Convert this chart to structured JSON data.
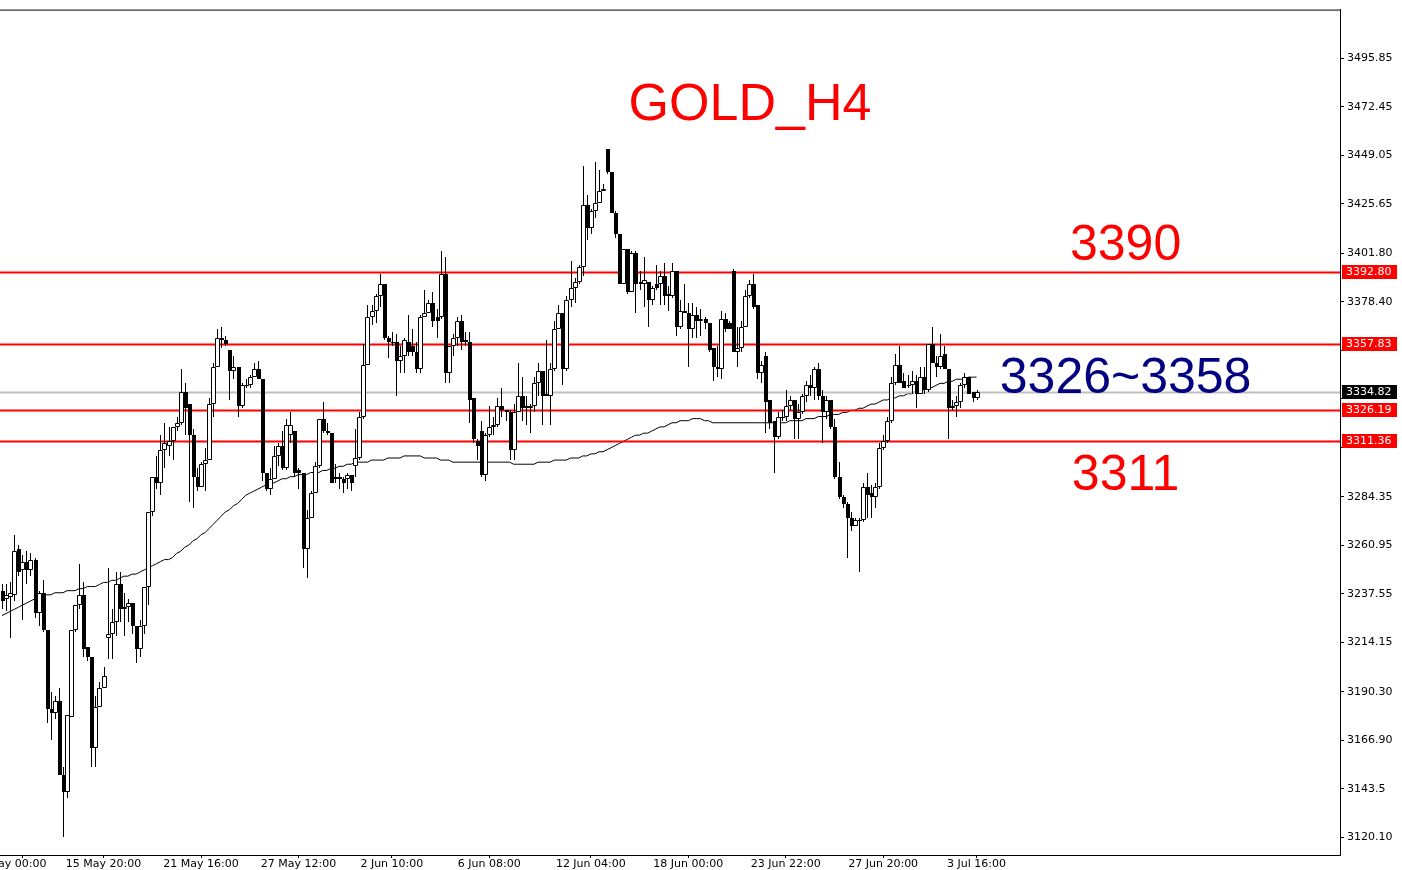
{
  "chart_data": {
    "type": "candlestick",
    "title": "GOLD_H4",
    "categories": [
      null,
      null,
      null,
      null,
      null,
      "ay 00:00",
      null,
      null,
      null,
      null,
      null,
      null,
      null,
      null,
      null,
      null,
      null,
      null,
      null,
      null,
      null,
      null,
      null,
      null,
      null,
      "15 May 20:00",
      null,
      null,
      null,
      null,
      null,
      null,
      null,
      null,
      null,
      null,
      null,
      null,
      null,
      null,
      null,
      null,
      null,
      null,
      null,
      null,
      null,
      null,
      null,
      "21 May 16:00",
      null,
      null,
      null,
      null,
      null,
      null,
      null,
      null,
      null,
      null,
      null,
      null,
      null,
      null,
      null,
      null,
      null,
      null,
      null,
      null,
      null,
      null,
      null,
      "27 May 12:00",
      null,
      null,
      null,
      null,
      null,
      null,
      null,
      null,
      null,
      null,
      null,
      null,
      null,
      null,
      null,
      null,
      null,
      null,
      null,
      null,
      null,
      null,
      "2 Jun 10:00",
      null,
      null,
      null,
      null,
      null,
      null,
      null,
      null,
      null,
      null,
      null,
      null,
      null,
      null,
      null,
      null,
      null,
      null,
      null,
      null,
      null,
      null,
      null,
      "6 Jun 08:00",
      null,
      null,
      null,
      null,
      null,
      null,
      null,
      null,
      null,
      null,
      null,
      null,
      null,
      null,
      null,
      null,
      null,
      null,
      null,
      null,
      null,
      null,
      null,
      null,
      "12 Jun 04:00",
      null,
      null,
      null,
      null,
      null,
      null,
      null,
      null,
      null,
      null,
      null,
      null,
      null,
      null,
      null,
      null,
      null,
      null,
      null,
      null,
      null,
      null,
      null,
      "18 Jun 00:00",
      null,
      null,
      null,
      null,
      null,
      null,
      null,
      null,
      null,
      null,
      null,
      null,
      null,
      null,
      null,
      null,
      null,
      null,
      null,
      null,
      null,
      null,
      null,
      "23 Jun 22:00",
      null,
      null,
      null,
      null,
      null,
      null,
      null,
      null,
      null,
      null,
      null,
      null,
      null,
      null,
      null,
      null,
      null,
      null,
      null,
      null,
      null,
      null,
      null,
      "27 Jun 20:00",
      null,
      null,
      null,
      null,
      null,
      null,
      null,
      null,
      null,
      null,
      null,
      null,
      null,
      null,
      null,
      null,
      null,
      null,
      null,
      null,
      null,
      null,
      "3 Jul 16:00",
      null,
      null,
      null,
      null,
      null,
      null,
      null,
      null,
      null,
      null,
      null,
      null,
      null,
      null,
      null,
      null,
      null,
      null,
      null,
      null,
      null,
      null,
      null,
      null,
      null,
      null,
      null,
      null,
      null,
      null,
      null,
      null,
      null,
      null,
      null,
      null,
      null,
      null,
      null,
      null,
      null,
      null,
      null,
      null,
      null,
      null,
      null,
      null,
      null,
      null,
      null,
      null,
      null,
      null,
      null,
      null,
      null,
      null,
      null,
      null,
      null,
      null,
      null,
      null,
      null,
      null,
      null,
      null,
      null,
      null,
      null,
      null,
      null,
      null,
      null,
      null,
      null,
      null,
      null,
      null,
      null,
      null,
      null,
      null,
      null,
      null,
      null,
      null,
      null
    ],
    "ohlc": [
      [
        3239,
        3242,
        3230,
        3234
      ],
      [
        3235,
        3242,
        3229,
        3237
      ],
      [
        3236,
        3243,
        3216,
        3238
      ],
      [
        3237,
        3266,
        3234,
        3258
      ],
      [
        3259,
        3261,
        3246,
        3248
      ],
      [
        3249,
        3256,
        3225,
        3253
      ],
      [
        3253,
        3258,
        3242,
        3249
      ],
      [
        3249,
        3257,
        3246,
        3254
      ],
      [
        3254,
        3255,
        3226,
        3228
      ],
      [
        3228,
        3239,
        3222,
        3238
      ],
      [
        3238,
        3244,
        3219,
        3220
      ],
      [
        3220,
        3220,
        3175,
        3182
      ],
      [
        3182,
        3190,
        3167,
        3180
      ],
      [
        3180,
        3188,
        3177,
        3186
      ],
      [
        3186,
        3192,
        3150,
        3150
      ],
      [
        3150,
        3154,
        3120,
        3142
      ],
      [
        3142,
        3179,
        3139,
        3179
      ],
      [
        3178,
        3220,
        3178,
        3220
      ],
      [
        3220,
        3232,
        3219,
        3232
      ],
      [
        3232,
        3252,
        3230,
        3237
      ],
      [
        3237,
        3243,
        3207,
        3211
      ],
      [
        3212,
        3212,
        3205,
        3207
      ],
      [
        3207,
        3207,
        3154,
        3163
      ],
      [
        3163,
        3188,
        3154,
        3183
      ],
      [
        3183,
        3195,
        3183,
        3192
      ],
      [
        3192,
        3202,
        3192,
        3198
      ],
      [
        3216,
        3250,
        3206,
        3218
      ],
      [
        3218,
        3230,
        3206,
        3224
      ],
      [
        3224,
        3248,
        3217,
        3242
      ],
      [
        3242,
        3248,
        3224,
        3230
      ],
      [
        3230,
        3238,
        3217,
        3231
      ],
      [
        3231,
        3235,
        3224,
        3233
      ],
      [
        3233,
        3233,
        3218,
        3222
      ],
      [
        3222,
        3222,
        3204,
        3211
      ],
      [
        3211,
        3225,
        3207,
        3222
      ],
      [
        3222,
        3241,
        3218,
        3241
      ],
      [
        3241,
        3277,
        3232,
        3277
      ],
      [
        3277,
        3294,
        3275,
        3294
      ],
      [
        3294,
        3304,
        3288,
        3291
      ],
      [
        3291,
        3314,
        3285,
        3307
      ],
      [
        3307,
        3320,
        3298,
        3310
      ],
      [
        3309,
        3318,
        3304,
        3311
      ],
      [
        3311,
        3318,
        3302,
        3318
      ],
      [
        3318,
        3323,
        3316,
        3320
      ],
      [
        3320,
        3346,
        3319,
        3335
      ],
      [
        3335,
        3339,
        3314,
        3327
      ],
      [
        3329,
        3329,
        3282,
        3314
      ],
      [
        3314,
        3317,
        3279,
        3294
      ],
      [
        3294,
        3298,
        3287,
        3289
      ],
      [
        3289,
        3301,
        3289,
        3300
      ],
      [
        3300,
        3308,
        3287,
        3302
      ],
      [
        3302,
        3332,
        3302,
        3329
      ],
      [
        3329,
        3349,
        3323,
        3347
      ],
      [
        3347,
        3365,
        3347,
        3361
      ],
      [
        3361,
        3366,
        3356,
        3360
      ],
      [
        3360,
        3362,
        3357,
        3358
      ],
      [
        3355,
        3355,
        3331,
        3345
      ],
      [
        3345,
        3352,
        3341,
        3347
      ],
      [
        3347,
        3347,
        3323,
        3328
      ],
      [
        3328,
        3339,
        3327,
        3338
      ],
      [
        3338,
        3341,
        3337,
        3338
      ],
      [
        3338,
        3343,
        3337,
        3342
      ],
      [
        3342,
        3349,
        3342,
        3346
      ],
      [
        3346,
        3350,
        3341,
        3341
      ],
      [
        3341,
        3341,
        3292,
        3296
      ],
      [
        3296,
        3296,
        3287,
        3288
      ],
      [
        3288,
        3298,
        3285,
        3293
      ],
      [
        3293,
        3309,
        3293,
        3304
      ],
      [
        3304,
        3310,
        3299,
        3309
      ],
      [
        3309,
        3316,
        3297,
        3298
      ],
      [
        3298,
        3322,
        3297,
        3319
      ],
      [
        3314,
        3325,
        3310,
        3319
      ],
      [
        3316,
        3316,
        3294,
        3296
      ],
      [
        3297,
        3298,
        3288,
        3296
      ],
      [
        3296,
        3296,
        3250,
        3259
      ],
      [
        3259,
        3278,
        3245,
        3274
      ],
      [
        3274,
        3287,
        3274,
        3286
      ],
      [
        3286,
        3301,
        3286,
        3299
      ],
      [
        3299,
        3322,
        3298,
        3322
      ],
      [
        3322,
        3330,
        3315,
        3316
      ],
      [
        3316,
        3320,
        3314,
        3315
      ],
      [
        3315,
        3315,
        3291,
        3291
      ],
      [
        3294,
        3300,
        3291,
        3293
      ],
      [
        3294,
        3296,
        3288,
        3293
      ],
      [
        3293,
        3294,
        3286,
        3291
      ],
      [
        3293,
        3296,
        3288,
        3295
      ],
      [
        3295,
        3295,
        3287,
        3291
      ],
      [
        3299,
        3317,
        3294,
        3303
      ],
      [
        3303,
        3325,
        3302,
        3323
      ],
      [
        3323,
        3358,
        3322,
        3348
      ],
      [
        3348,
        3377,
        3348,
        3371
      ],
      [
        3371,
        3377,
        3367,
        3374
      ],
      [
        3374,
        3382,
        3368,
        3381
      ],
      [
        3381,
        3392,
        3376,
        3387
      ],
      [
        3387,
        3387,
        3360,
        3361
      ],
      [
        3361,
        3362,
        3351,
        3359
      ],
      [
        3359,
        3364,
        3357,
        3359
      ],
      [
        3359,
        3363,
        3333,
        3350
      ],
      [
        3350,
        3357,
        3344,
        3352
      ],
      [
        3352,
        3361,
        3344,
        3360
      ],
      [
        3359,
        3372,
        3352,
        3354
      ],
      [
        3357,
        3365,
        3352,
        3354
      ],
      [
        3354,
        3359,
        3344,
        3346
      ],
      [
        3346,
        3372,
        3344,
        3371
      ],
      [
        3371,
        3384,
        3371,
        3373
      ],
      [
        3373,
        3379,
        3373,
        3378
      ],
      [
        3378,
        3383,
        3366,
        3369
      ],
      [
        3371,
        3375,
        3361,
        3369
      ],
      [
        3371,
        3403,
        3370,
        3392
      ],
      [
        3392,
        3400,
        3339,
        3344
      ],
      [
        3344,
        3357,
        3339,
        3357
      ],
      [
        3357,
        3363,
        3352,
        3361
      ],
      [
        3361,
        3371,
        3357,
        3369
      ],
      [
        3369,
        3372,
        3355,
        3359
      ],
      [
        3360,
        3364,
        3357,
        3359
      ],
      [
        3359,
        3364,
        3320,
        3331
      ],
      [
        3332,
        3332,
        3310,
        3312
      ],
      [
        3311,
        3312,
        3302,
        3309
      ],
      [
        3316,
        3321,
        3294,
        3295
      ],
      [
        3295,
        3315,
        3292,
        3314
      ],
      [
        3314,
        3328,
        3313,
        3318
      ],
      [
        3318,
        3323,
        3314,
        3319
      ],
      [
        3319,
        3332,
        3318,
        3328
      ],
      [
        3328,
        3337,
        3323,
        3326
      ],
      [
        3326,
        3326,
        3321,
        3325
      ],
      [
        3325,
        3326,
        3302,
        3307
      ],
      [
        3307,
        3329,
        3302,
        3325
      ],
      [
        3325,
        3349,
        3325,
        3333
      ],
      [
        3333,
        3342,
        3321,
        3327
      ],
      [
        3327,
        3333,
        3319,
        3328
      ],
      [
        3327,
        3329,
        3315,
        3328
      ],
      [
        3328,
        3342,
        3325,
        3339
      ],
      [
        3339,
        3349,
        3333,
        3345
      ],
      [
        3345,
        3345,
        3319,
        3333
      ],
      [
        3334,
        3360,
        3333,
        3333
      ],
      [
        3333,
        3349,
        3319,
        3346
      ],
      [
        3346,
        3369,
        3345,
        3365
      ],
      [
        3365,
        3377,
        3365,
        3373
      ],
      [
        3373,
        3373,
        3338,
        3346
      ],
      [
        3346,
        3381,
        3345,
        3379
      ],
      [
        3379,
        3398,
        3376,
        3385
      ],
      [
        3385,
        3390,
        3378,
        3388
      ],
      [
        3388,
        3396,
        3387,
        3395
      ],
      [
        3395,
        3444,
        3391,
        3425
      ],
      [
        3425,
        3430,
        3408,
        3414
      ],
      [
        3414,
        3423,
        3411,
        3422
      ],
      [
        3422,
        3446,
        3419,
        3426
      ],
      [
        3426,
        3442,
        3426,
        3432
      ],
      [
        3432,
        3435,
        3432,
        3433
      ],
      [
        3452,
        3452,
        3440,
        3441
      ],
      [
        3441,
        3441,
        3421,
        3421
      ],
      [
        3421,
        3422,
        3409,
        3411
      ],
      [
        3411,
        3411,
        3387,
        3387
      ],
      [
        3387,
        3404,
        3387,
        3404
      ],
      [
        3404,
        3404,
        3382,
        3383
      ],
      [
        3383,
        3403,
        3383,
        3402
      ],
      [
        3402,
        3403,
        3373,
        3387
      ],
      [
        3388,
        3393,
        3384,
        3387
      ],
      [
        3387,
        3400,
        3376,
        3389
      ],
      [
        3388,
        3388,
        3366,
        3379
      ],
      [
        3379,
        3386,
        3377,
        3385
      ],
      [
        3387,
        3396,
        3384,
        3385
      ],
      [
        3387,
        3393,
        3377,
        3391
      ],
      [
        3391,
        3397,
        3377,
        3381
      ],
      [
        3382,
        3386,
        3374,
        3381
      ],
      [
        3381,
        3397,
        3380,
        3393
      ],
      [
        3393,
        3393,
        3362,
        3366
      ],
      [
        3366,
        3379,
        3365,
        3374
      ],
      [
        3374,
        3387,
        3373,
        3373
      ],
      [
        3373,
        3378,
        3347,
        3365
      ],
      [
        3365,
        3378,
        3361,
        3372
      ],
      [
        3372,
        3376,
        3361,
        3369
      ],
      [
        3369,
        3375,
        3362,
        3370
      ],
      [
        3370,
        3371,
        3365,
        3368
      ],
      [
        3368,
        3368,
        3354,
        3355
      ],
      [
        3356,
        3356,
        3340,
        3347
      ],
      [
        3347,
        3357,
        3342,
        3346
      ],
      [
        3346,
        3374,
        3341,
        3370
      ],
      [
        3370,
        3373,
        3364,
        3365
      ],
      [
        3368,
        3369,
        3365,
        3365
      ],
      [
        3393,
        3394,
        3354,
        3354
      ],
      [
        3354,
        3366,
        3347,
        3356
      ],
      [
        3356,
        3369,
        3354,
        3366
      ],
      [
        3366,
        3384,
        3366,
        3381
      ],
      [
        3381,
        3389,
        3380,
        3387
      ],
      [
        3387,
        3392,
        3375,
        3376
      ],
      [
        3377,
        3377,
        3341,
        3344
      ],
      [
        3344,
        3350,
        3339,
        3348
      ],
      [
        3352,
        3354,
        3315,
        3330
      ],
      [
        3331,
        3331,
        3317,
        3320
      ],
      [
        3321,
        3321,
        3296,
        3313
      ],
      [
        3313,
        3325,
        3312,
        3323
      ],
      [
        3323,
        3326,
        3321,
        3323
      ],
      [
        3323,
        3336,
        3321,
        3328
      ],
      [
        3328,
        3333,
        3326,
        3331
      ],
      [
        3331,
        3331,
        3312,
        3322
      ],
      [
        3322,
        3329,
        3312,
        3325
      ],
      [
        3325,
        3334,
        3324,
        3333
      ],
      [
        3333,
        3340,
        3330,
        3338
      ],
      [
        3338,
        3343,
        3333,
        3337
      ],
      [
        3337,
        3347,
        3331,
        3346
      ],
      [
        3346,
        3349,
        3331,
        3333
      ],
      [
        3333,
        3336,
        3310,
        3325
      ],
      [
        3325,
        3333,
        3322,
        3331
      ],
      [
        3331,
        3331,
        3317,
        3318
      ],
      [
        3318,
        3322,
        3293,
        3294
      ],
      [
        3294,
        3301,
        3283,
        3284
      ],
      [
        3284,
        3285,
        3279,
        3281
      ],
      [
        3281,
        3282,
        3255,
        3274
      ],
      [
        3274,
        3277,
        3268,
        3270
      ],
      [
        3270,
        3274,
        3270,
        3273
      ],
      [
        3273,
        3274,
        3248,
        3273
      ],
      [
        3273,
        3291,
        3272,
        3289
      ],
      [
        3289,
        3296,
        3274,
        3285
      ],
      [
        3286,
        3290,
        3274,
        3284
      ],
      [
        3284,
        3291,
        3279,
        3289
      ],
      [
        3289,
        3310,
        3288,
        3308
      ],
      [
        3308,
        3314,
        3307,
        3311
      ],
      [
        3311,
        3323,
        3310,
        3321
      ],
      [
        3321,
        3342,
        3320,
        3339
      ],
      [
        3339,
        3353,
        3338,
        3348
      ],
      [
        3348,
        3357,
        3339,
        3339
      ],
      [
        3340,
        3344,
        3337,
        3337
      ],
      [
        3338,
        3343,
        3337,
        3338
      ],
      [
        3338,
        3345,
        3334,
        3340
      ],
      [
        3340,
        3343,
        3327,
        3334
      ],
      [
        3334,
        3347,
        3334,
        3342
      ],
      [
        3342,
        3347,
        3334,
        3336
      ],
      [
        3336,
        3358,
        3335,
        3358
      ],
      [
        3358,
        3366,
        3349,
        3349
      ],
      [
        3349,
        3352,
        3342,
        3347
      ],
      [
        3347,
        3363,
        3346,
        3352
      ],
      [
        3353,
        3357,
        3346,
        3346
      ],
      [
        3346,
        3346,
        3312,
        3327
      ],
      [
        3327,
        3331,
        3326,
        3328
      ],
      [
        3328,
        3333,
        3323,
        3330
      ],
      [
        3330,
        3339,
        3327,
        3338
      ],
      [
        3338,
        3344,
        3337,
        3342
      ],
      [
        3342,
        3342,
        3334,
        3334
      ],
      [
        3335,
        3335,
        3330,
        3332
      ],
      [
        3332,
        3336,
        3331,
        3335
      ],
      null,
      null,
      null,
      null,
      null,
      null,
      null,
      null,
      null,
      null,
      null,
      null,
      null,
      null,
      null,
      null,
      null,
      null,
      null,
      null,
      null,
      null,
      null,
      null,
      null,
      null,
      null,
      null,
      null,
      null,
      null,
      null,
      null,
      null,
      null,
      null,
      null,
      null,
      null,
      null,
      null,
      null,
      null,
      null,
      null,
      null,
      null,
      null,
      null,
      null,
      null,
      null,
      null,
      null,
      null,
      null,
      null,
      null,
      null,
      null,
      null,
      null,
      null,
      null,
      null,
      null,
      null,
      null,
      null,
      null,
      null,
      null,
      null,
      null,
      null,
      null,
      null,
      null,
      null,
      null,
      null,
      null,
      null,
      null,
      null,
      null,
      null,
      null,
      null
    ],
    "series": [
      {
        "type": "line",
        "color": "#000000",
        "values": [
          3227,
          3228,
          3229,
          3230,
          3231,
          3232,
          3233,
          3234,
          3235,
          3236,
          3236,
          3237,
          3237,
          3238,
          3238,
          3238,
          3239,
          3239,
          3239,
          3240,
          3240,
          3241,
          3241,
          3241,
          3242,
          3243,
          3243,
          3244,
          3244,
          3245,
          3246,
          3246,
          3247,
          3247,
          3248,
          3249,
          3250,
          3251,
          3252,
          3253,
          3254,
          3254,
          3255,
          3257,
          3258,
          3260,
          3261,
          3263,
          3264,
          3266,
          3267,
          3269,
          3271,
          3273,
          3275,
          3277,
          3278,
          3280,
          3281,
          3283,
          3285,
          3286,
          3287,
          3288,
          3289,
          3290,
          3291,
          3291,
          3292,
          3293,
          3293,
          3294,
          3294,
          3295,
          3295,
          3295,
          3296,
          3296,
          3296,
          3297,
          3297,
          3298,
          3298,
          3299,
          3299,
          3300,
          3300,
          3301,
          3301,
          3301,
          3301,
          3302,
          3302,
          3302,
          3302,
          3303,
          3303,
          3303,
          3303,
          3304,
          3304,
          3304,
          3304,
          3304,
          3303,
          3303,
          3303,
          3303,
          3302,
          3302,
          3302,
          3301,
          3301,
          3301,
          3301,
          3301,
          3301,
          3301,
          3301,
          3301,
          3301,
          3301,
          3301,
          3301,
          3301,
          3301,
          3300,
          3300,
          3300,
          3300,
          3300,
          3300,
          3301,
          3301,
          3301,
          3301,
          3302,
          3302,
          3302,
          3302,
          3303,
          3303,
          3303,
          3304,
          3304,
          3305,
          3305,
          3306,
          3306,
          3307,
          3308,
          3309,
          3310,
          3311,
          3312,
          3313,
          3314,
          3314,
          3315,
          3315,
          3316,
          3317,
          3318,
          3318,
          3319,
          3320,
          3320,
          3321,
          3321,
          3321,
          3322,
          3322,
          3322,
          3321,
          3321,
          3320,
          3320,
          3320,
          3320,
          3320,
          3320,
          3320,
          3320,
          3320,
          3320,
          3320,
          3320,
          3320,
          3320,
          3320,
          3320,
          3320,
          3320,
          3320,
          3321,
          3321,
          3321,
          3321,
          3322,
          3322,
          3322,
          3323,
          3323,
          3323,
          3324,
          3324,
          3324,
          3325,
          3325,
          3326,
          3326,
          3327,
          3327,
          3328,
          3329,
          3329,
          3330,
          3331,
          3331,
          3332,
          3332,
          3333,
          3333,
          3334,
          3334,
          3335,
          3335,
          3336,
          3337,
          3337,
          3338,
          3339,
          3339,
          3340,
          3340,
          3341,
          3341,
          3341,
          3342,
          3342,
          3342,
          null,
          null,
          null,
          null,
          null,
          null,
          null,
          null,
          null,
          null,
          null,
          null,
          null,
          null,
          null,
          null,
          null,
          null,
          null,
          null,
          null,
          null,
          null,
          null,
          null,
          null,
          null,
          null,
          null,
          null,
          null,
          null,
          null,
          null,
          null,
          null,
          null,
          null,
          null,
          null,
          null,
          null,
          null,
          null,
          null,
          null,
          null,
          null,
          null,
          null,
          null,
          null,
          null,
          null,
          null,
          null,
          null,
          null,
          null,
          null,
          null,
          null,
          null,
          null,
          null,
          null,
          null,
          null,
          null,
          null,
          null,
          null,
          null,
          null,
          null,
          null,
          null,
          null,
          null,
          null,
          null,
          null,
          null,
          null,
          null,
          null,
          null,
          null,
          null
        ]
      }
    ],
    "marker": "none",
    "ylim": [
      3111.5,
      3519.3
    ],
    "yticks": [
      {
        "value": 3120.1,
        "label": "3120.10"
      },
      3143.5,
      {
        "value": 3166.9,
        "label": "3166.90"
      },
      {
        "value": 3190.3,
        "label": "3190.30"
      },
      3214.15,
      3237.55,
      3260.95,
      3284.35,
      {
        "value": 3308.2,
        "label": null
      },
      {
        "value": 3331.6,
        "label": null
      },
      {
        "value": 3355,
        "label": null
      },
      {
        "value": 3378.4,
        "label": "3378.40"
      },
      {
        "value": 3401.8,
        "label": "3401.80"
      },
      3425.65,
      3449.05,
      3472.45,
      3495.85
    ],
    "grid": false,
    "legend": false,
    "ref_lines": [
      {
        "axis": "y",
        "value": 3392.8,
        "label": "3392.80",
        "color": "#ff0000"
      },
      {
        "axis": "y",
        "value": 3357.83,
        "label": "3357.83",
        "color": "#ff0000"
      },
      {
        "axis": "y",
        "value": 3334.82,
        "label": "3334.82",
        "color": "#c0c0c0"
      },
      {
        "axis": "y",
        "value": 3326.19,
        "label": "3326.19",
        "color": "#ff0000"
      },
      {
        "axis": "y",
        "value": 3311.36,
        "label": "3311.36",
        "color": "#ff0000"
      }
    ],
    "annotations": [
      "3390",
      "3326~3358",
      "3311"
    ]
  }
}
